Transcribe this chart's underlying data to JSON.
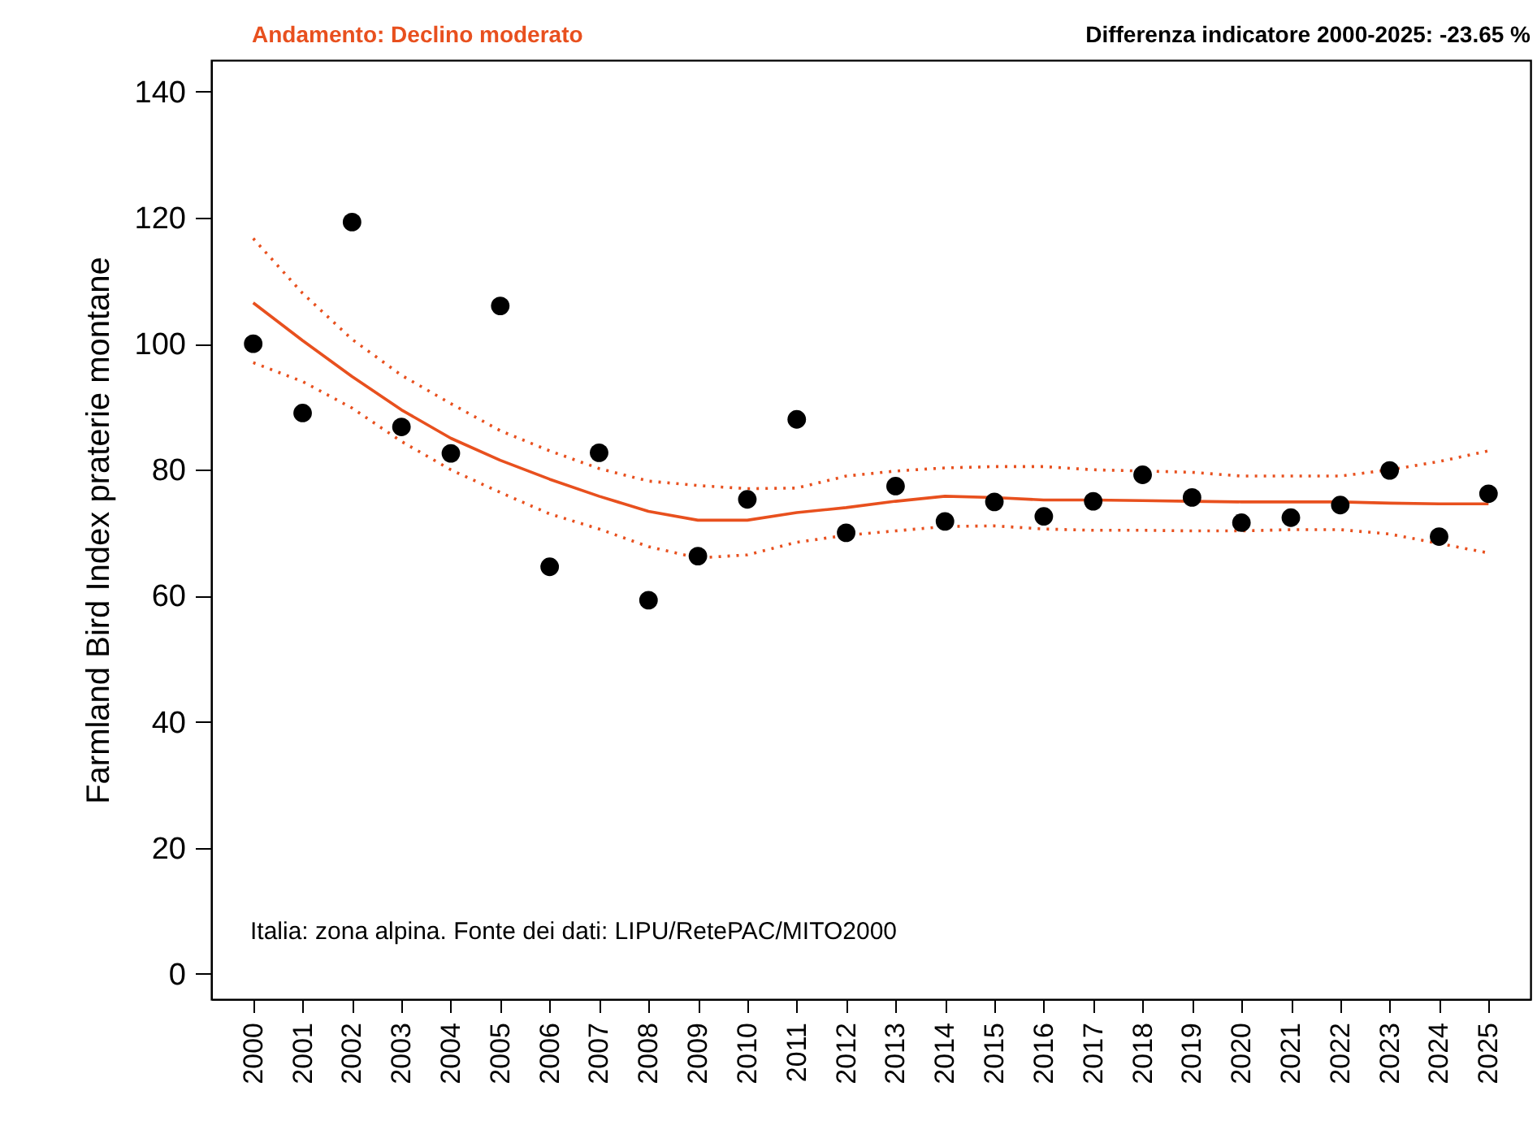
{
  "chart_data": {
    "type": "scatter",
    "title": "Andamento:  Declino moderato",
    "subtitle": "Differenza indicatore 2000-2025: -23.65 %",
    "ylabel": "Farmland Bird Index praterie montane",
    "annotations": [
      "Italia: zona alpina. Fonte dei dati: LIPU/RetePAC/MITO2000"
    ],
    "categories": [
      "2000",
      "2001",
      "2002",
      "2003",
      "2004",
      "2005",
      "2006",
      "2007",
      "2008",
      "2009",
      "2010",
      "2011",
      "2012",
      "2013",
      "2014",
      "2015",
      "2016",
      "2017",
      "2018",
      "2019",
      "2020",
      "2021",
      "2022",
      "2023",
      "2024",
      "2025"
    ],
    "series": [
      {
        "type": "line",
        "color": "#e8501e",
        "line_style": "solid",
        "values": [
          106.5,
          100.5,
          94.8,
          89.5,
          85,
          81.5,
          78.5,
          75.8,
          73.4,
          72,
          72,
          73.2,
          74,
          75,
          75.8,
          75.6,
          75.2,
          75.2,
          75.1,
          75,
          74.9,
          74.9,
          74.9,
          74.7,
          74.6,
          74.6
        ]
      },
      {
        "type": "line",
        "color": "#e8501e",
        "line_style": "dotted",
        "values": [
          116.7,
          108,
          100.7,
          95,
          90.5,
          86.2,
          83,
          80.2,
          78.2,
          77.5,
          77,
          77.1,
          79,
          79.8,
          80.3,
          80.5,
          80.5,
          80,
          79.8,
          79.6,
          79,
          79,
          79,
          80,
          81.3,
          83
        ]
      },
      {
        "type": "line",
        "color": "#e8501e",
        "line_style": "dotted",
        "values": [
          97,
          94,
          89.8,
          84.5,
          80,
          76.4,
          73,
          70.6,
          67.8,
          66,
          66.5,
          68.5,
          69.6,
          70.3,
          71,
          71.1,
          70.6,
          70.4,
          70.4,
          70.3,
          70.3,
          70.5,
          70.5,
          69.8,
          68.3,
          66.8
        ]
      },
      {
        "color": "#000000",
        "marker": "circle",
        "values": [
          100,
          89,
          119.3,
          86.8,
          82.6,
          106,
          64.6,
          82.7,
          59.3,
          66.3,
          75.3,
          88,
          70,
          77.4,
          71.8,
          74.9,
          72.6,
          75,
          79.2,
          75.6,
          71.6,
          72.4,
          74.4,
          79.9,
          69.4,
          76.2
        ]
      }
    ],
    "ylim": [
      -4,
      145
    ],
    "yticks": [
      0,
      20,
      40,
      60,
      80,
      100,
      120,
      140
    ],
    "grid": false
  }
}
